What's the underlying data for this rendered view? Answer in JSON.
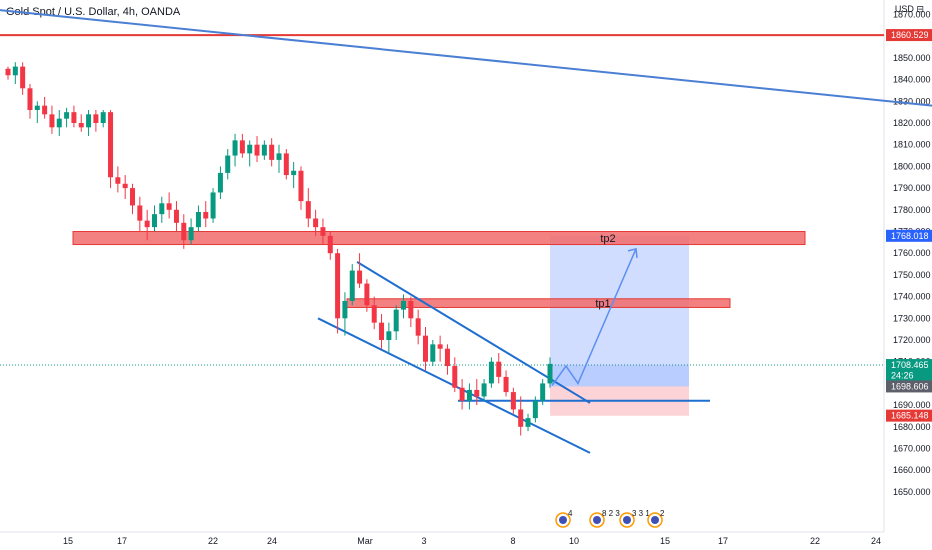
{
  "header": {
    "title": "Gold Spot / U.S. Dollar, 4h, OANDA",
    "currency": "USD",
    "currency_suffix": "⊟"
  },
  "chart_data": {
    "type": "candlestick",
    "symbol": "XAUUSD",
    "timeframe": "4h",
    "ylim": [
      1645,
      1875
    ],
    "y_ticks": [
      "1650.000",
      "1660.000",
      "1670.000",
      "1680.000",
      "1690.000",
      "1700.000",
      "1710.000",
      "1720.000",
      "1730.000",
      "1740.000",
      "1750.000",
      "1760.000",
      "1770.000",
      "1780.000",
      "1790.000",
      "1800.000",
      "1810.000",
      "1820.000",
      "1830.000",
      "1840.000",
      "1850.000",
      "1860.000",
      "1870.000"
    ],
    "x_ticks": [
      "15",
      "17",
      "22",
      "24",
      "Mar",
      "3",
      "8",
      "10",
      "15",
      "17",
      "22",
      "24"
    ],
    "price_labels": [
      {
        "value": "1860.529",
        "color": "#e53935"
      },
      {
        "value": "1768.018",
        "color": "#2962ff"
      },
      {
        "value": "1708.465",
        "color": "#089981"
      },
      {
        "value": "24:26",
        "color": "#089981"
      },
      {
        "value": "1698.606",
        "color": "#5d606b"
      },
      {
        "value": "1685.148",
        "color": "#e53935"
      }
    ],
    "zones": [
      {
        "label": "tp2",
        "low": 1764,
        "high": 1770
      },
      {
        "label": "tp1",
        "low": 1735,
        "high": 1739
      }
    ],
    "position": {
      "entry": 1698.6,
      "target": 1768.0,
      "stop": 1685.1,
      "current": 1708.465
    },
    "candles": [
      [
        1845,
        1846,
        1840,
        1842
      ],
      [
        1842,
        1848,
        1838,
        1846
      ],
      [
        1846,
        1848,
        1833,
        1836
      ],
      [
        1836,
        1838,
        1822,
        1826
      ],
      [
        1826,
        1830,
        1820,
        1828
      ],
      [
        1828,
        1832,
        1822,
        1824
      ],
      [
        1824,
        1828,
        1815,
        1818
      ],
      [
        1818,
        1826,
        1814,
        1822
      ],
      [
        1822,
        1827,
        1818,
        1825
      ],
      [
        1825,
        1828,
        1818,
        1820
      ],
      [
        1820,
        1824,
        1816,
        1818
      ],
      [
        1818,
        1826,
        1814,
        1824
      ],
      [
        1824,
        1826,
        1816,
        1820
      ],
      [
        1820,
        1826,
        1818,
        1825
      ],
      [
        1825,
        1826,
        1790,
        1795
      ],
      [
        1795,
        1800,
        1788,
        1792
      ],
      [
        1792,
        1796,
        1785,
        1790
      ],
      [
        1790,
        1792,
        1778,
        1782
      ],
      [
        1782,
        1786,
        1770,
        1775
      ],
      [
        1775,
        1780,
        1766,
        1772
      ],
      [
        1772,
        1782,
        1770,
        1778
      ],
      [
        1778,
        1786,
        1774,
        1783
      ],
      [
        1783,
        1788,
        1776,
        1780
      ],
      [
        1780,
        1784,
        1770,
        1774
      ],
      [
        1774,
        1778,
        1762,
        1766
      ],
      [
        1766,
        1776,
        1764,
        1772
      ],
      [
        1772,
        1782,
        1770,
        1779
      ],
      [
        1779,
        1784,
        1772,
        1776
      ],
      [
        1776,
        1790,
        1774,
        1788
      ],
      [
        1788,
        1800,
        1785,
        1797
      ],
      [
        1797,
        1808,
        1794,
        1805
      ],
      [
        1805,
        1815,
        1800,
        1812
      ],
      [
        1812,
        1815,
        1804,
        1806
      ],
      [
        1806,
        1812,
        1800,
        1810
      ],
      [
        1810,
        1814,
        1802,
        1805
      ],
      [
        1805,
        1812,
        1803,
        1810
      ],
      [
        1810,
        1813,
        1800,
        1803
      ],
      [
        1803,
        1810,
        1797,
        1806
      ],
      [
        1806,
        1808,
        1794,
        1796
      ],
      [
        1796,
        1802,
        1790,
        1798
      ],
      [
        1798,
        1800,
        1780,
        1784
      ],
      [
        1784,
        1790,
        1772,
        1776
      ],
      [
        1776,
        1780,
        1768,
        1772
      ],
      [
        1772,
        1776,
        1764,
        1768
      ],
      [
        1768,
        1770,
        1757,
        1760
      ],
      [
        1760,
        1762,
        1723,
        1730
      ],
      [
        1730,
        1742,
        1722,
        1738
      ],
      [
        1738,
        1755,
        1736,
        1752
      ],
      [
        1752,
        1760,
        1744,
        1746
      ],
      [
        1746,
        1748,
        1733,
        1736
      ],
      [
        1736,
        1740,
        1725,
        1728
      ],
      [
        1728,
        1732,
        1716,
        1720
      ],
      [
        1720,
        1728,
        1714,
        1724
      ],
      [
        1724,
        1736,
        1720,
        1734
      ],
      [
        1734,
        1741,
        1730,
        1738
      ],
      [
        1738,
        1740,
        1726,
        1730
      ],
      [
        1730,
        1734,
        1718,
        1722
      ],
      [
        1722,
        1726,
        1706,
        1710
      ],
      [
        1710,
        1720,
        1708,
        1718
      ],
      [
        1718,
        1722,
        1710,
        1716
      ],
      [
        1716,
        1718,
        1704,
        1708
      ],
      [
        1708,
        1712,
        1696,
        1698
      ],
      [
        1698,
        1702,
        1688,
        1692
      ],
      [
        1692,
        1700,
        1688,
        1697
      ],
      [
        1697,
        1702,
        1690,
        1694
      ],
      [
        1694,
        1702,
        1692,
        1700
      ],
      [
        1700,
        1712,
        1698,
        1710
      ],
      [
        1710,
        1714,
        1700,
        1703
      ],
      [
        1703,
        1706,
        1694,
        1696
      ],
      [
        1696,
        1698,
        1686,
        1688
      ],
      [
        1688,
        1694,
        1676,
        1680
      ],
      [
        1680,
        1686,
        1678,
        1684
      ],
      [
        1684,
        1694,
        1682,
        1692
      ],
      [
        1692,
        1702,
        1690,
        1700
      ],
      [
        1700,
        1712,
        1698,
        1709
      ]
    ],
    "trendlines": [
      {
        "kind": "long-resistance",
        "points": [
          [
            0,
            1872
          ],
          [
            932,
            1828
          ]
        ],
        "color": "#4a7fd4"
      },
      {
        "kind": "channel-top",
        "points": [
          [
            357,
            1756
          ],
          [
            590,
            1691
          ]
        ],
        "color": "#1e6fd0"
      },
      {
        "kind": "channel-bottom",
        "points": [
          [
            318,
            1730
          ],
          [
            590,
            1668
          ]
        ],
        "color": "#1e6fd0"
      },
      {
        "kind": "support",
        "points": [
          [
            458,
            1692
          ],
          [
            710,
            1692
          ]
        ],
        "color": "#1e6fd0"
      }
    ],
    "events": [
      {
        "count": "4"
      },
      {
        "count": "8 2 3"
      },
      {
        "count": "3 3 1"
      },
      {
        "count": "2"
      }
    ]
  }
}
